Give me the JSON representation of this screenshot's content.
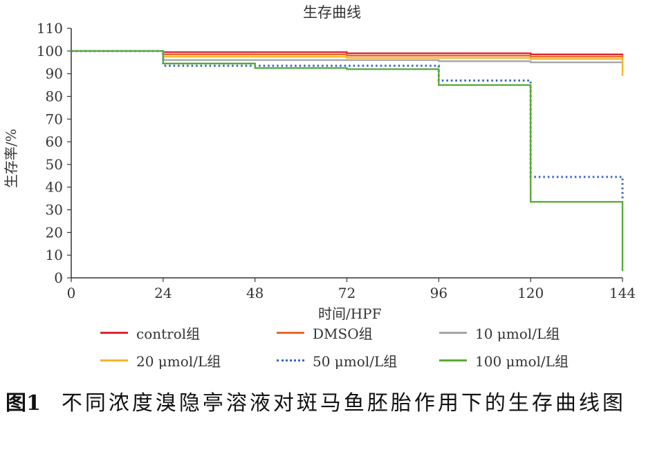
{
  "chart_data": {
    "type": "line",
    "step": true,
    "title": "生存曲线",
    "xlabel": "时间/HPF",
    "ylabel": "生存率/%",
    "xlim": [
      0,
      144
    ],
    "ylim": [
      0,
      110
    ],
    "xticks": [
      0,
      24,
      48,
      72,
      96,
      120,
      144
    ],
    "yticks": [
      0,
      10,
      20,
      30,
      40,
      50,
      60,
      70,
      80,
      90,
      100,
      110
    ],
    "grid": false,
    "legend_position": "bottom",
    "x": [
      0,
      24,
      48,
      72,
      96,
      120,
      144
    ],
    "series": [
      {
        "name": "control组",
        "color": "#e0252f",
        "dash": "solid",
        "values": [
          100,
          99.5,
          99.5,
          99,
          99,
          98.5,
          98
        ]
      },
      {
        "name": "DMSO组",
        "color": "#e8672c",
        "dash": "solid",
        "values": [
          100,
          98.5,
          98.5,
          98,
          98,
          97.5,
          97
        ]
      },
      {
        "name": "10 μmol/L组",
        "color": "#a6a6a6",
        "dash": "solid",
        "values": [
          100,
          96,
          96,
          96,
          95.5,
          95,
          94.5
        ]
      },
      {
        "name": "20 μmol/L组",
        "color": "#f4b52a",
        "dash": "solid",
        "values": [
          100,
          97.5,
          97.5,
          97,
          97,
          96.5,
          89
        ]
      },
      {
        "name": "50 μmol/L组",
        "color": "#3a63c8",
        "dash": "dotted",
        "values": [
          100,
          93.5,
          93.5,
          93.5,
          87,
          44.5,
          35
        ]
      },
      {
        "name": "100 μmol/L组",
        "color": "#5aaa3a",
        "dash": "solid",
        "values": [
          100,
          94.5,
          92.5,
          92,
          85,
          33.5,
          3
        ]
      }
    ]
  },
  "caption": {
    "label": "图1",
    "text": "不同浓度溴隐亭溶液对斑马鱼胚胎作用下的生存曲线图"
  }
}
